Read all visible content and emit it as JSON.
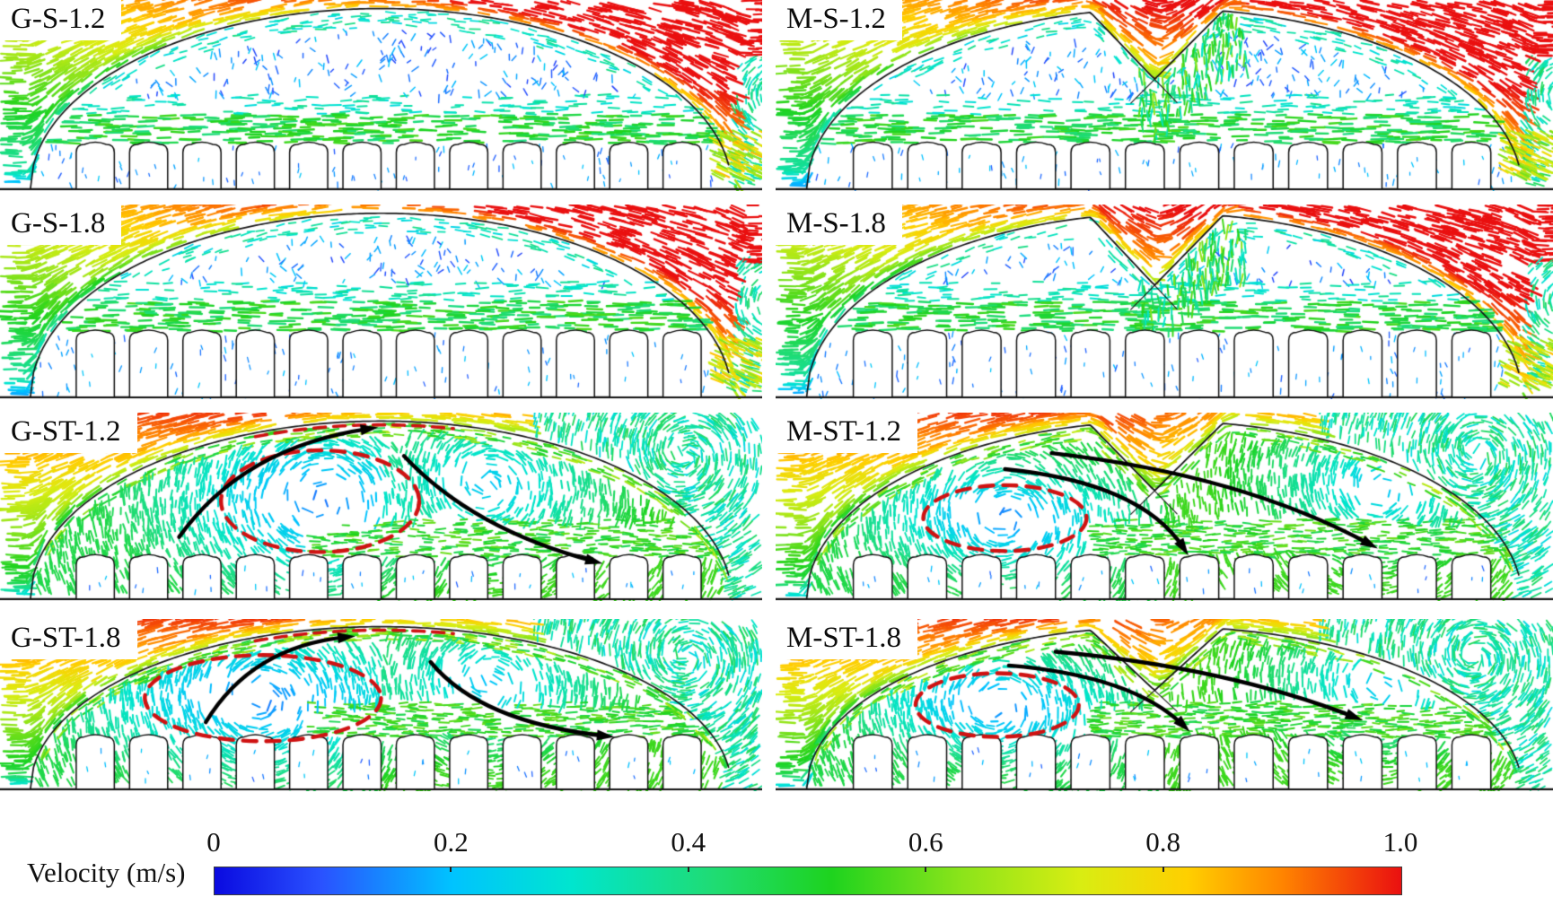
{
  "chart_data": {
    "type": "vector-field-grid",
    "layout": {
      "grid": "4x2",
      "legend_position": "bottom"
    },
    "units": "m/s",
    "value_range": [
      0,
      1
    ],
    "panels": [
      {
        "label": "G-S-1.2",
        "roof": "smooth-arch",
        "flow_style": "S",
        "crop_h": 0.23,
        "annotations": null
      },
      {
        "label": "M-S-1.2",
        "roof": "notched-arch",
        "flow_style": "S",
        "crop_h": 0.23,
        "annotations": null
      },
      {
        "label": "G-S-1.8",
        "roof": "smooth-arch",
        "flow_style": "S",
        "crop_h": 0.33,
        "annotations": null
      },
      {
        "label": "M-S-1.8",
        "roof": "notched-arch",
        "flow_style": "S",
        "crop_h": 0.33,
        "annotations": null
      },
      {
        "label": "G-ST-1.2",
        "roof": "smooth-arch",
        "flow_style": "ST",
        "crop_h": 0.22,
        "annotations": {
          "roof_dash": true,
          "ellipse": {
            "cx": 0.42,
            "cy": 0.47,
            "rx": 0.13,
            "ry": 0.27
          },
          "arrows": [
            [
              0.235,
              0.66,
              0.32,
              0.18,
              0.485,
              0.085
            ],
            [
              0.53,
              0.23,
              0.62,
              0.62,
              0.78,
              0.79
            ]
          ]
        }
      },
      {
        "label": "M-ST-1.2",
        "roof": "notched-arch",
        "flow_style": "ST",
        "crop_h": 0.22,
        "annotations": {
          "roof_dash": false,
          "ellipse": {
            "cx": 0.295,
            "cy": 0.56,
            "rx": 0.105,
            "ry": 0.175
          },
          "arrows": [
            [
              0.295,
              0.3,
              0.47,
              0.37,
              0.525,
              0.72
            ],
            [
              0.355,
              0.215,
              0.6,
              0.33,
              0.765,
              0.7
            ]
          ]
        }
      },
      {
        "label": "G-ST-1.8",
        "roof": "smooth-arch",
        "flow_style": "ST",
        "crop_h": 0.3,
        "annotations": {
          "roof_dash": true,
          "ellipse": {
            "cx": 0.345,
            "cy": 0.46,
            "rx": 0.155,
            "ry": 0.25
          },
          "arrows": [
            [
              0.27,
              0.6,
              0.33,
              0.16,
              0.455,
              0.105
            ],
            [
              0.565,
              0.25,
              0.63,
              0.6,
              0.795,
              0.68
            ]
          ]
        }
      },
      {
        "label": "M-ST-1.8",
        "roof": "notched-arch",
        "flow_style": "ST",
        "crop_h": 0.3,
        "annotations": {
          "roof_dash": false,
          "ellipse": {
            "cx": 0.285,
            "cy": 0.5,
            "rx": 0.105,
            "ry": 0.185
          },
          "arrows": [
            [
              0.3,
              0.27,
              0.46,
              0.33,
              0.525,
              0.62
            ],
            [
              0.36,
              0.19,
              0.58,
              0.28,
              0.745,
              0.57
            ]
          ]
        }
      }
    ],
    "colorbar": {
      "title": "Velocity (m/s)",
      "ticks": [
        "0",
        "0.2",
        "0.4",
        "0.6",
        "0.8",
        "1.0"
      ],
      "min": 0,
      "max": 1,
      "gradient": [
        {
          "pos": 0.0,
          "color": "#0a0ae0"
        },
        {
          "pos": 0.09,
          "color": "#2a52ff"
        },
        {
          "pos": 0.2,
          "color": "#00c3ff"
        },
        {
          "pos": 0.3,
          "color": "#00e5cf"
        },
        {
          "pos": 0.42,
          "color": "#1fdc74"
        },
        {
          "pos": 0.52,
          "color": "#1ed31e"
        },
        {
          "pos": 0.63,
          "color": "#8ce41a"
        },
        {
          "pos": 0.73,
          "color": "#d9ed12"
        },
        {
          "pos": 0.82,
          "color": "#ffcf00"
        },
        {
          "pos": 0.9,
          "color": "#ff8400"
        },
        {
          "pos": 1.0,
          "color": "#ea1010"
        }
      ]
    }
  }
}
